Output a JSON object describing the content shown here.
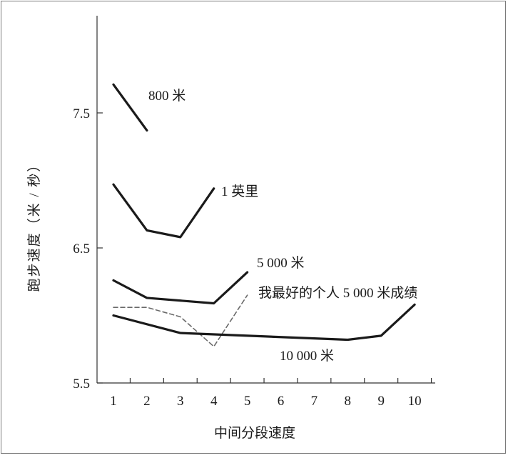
{
  "chart_data": {
    "type": "line",
    "title": "",
    "xlabel": "中间分段速度",
    "ylabel": "跑步速度（米 / 秒）",
    "xlim": [
      0.9,
      10.5
    ],
    "ylim": [
      5.5,
      8.3
    ],
    "x_ticks": [
      "1",
      "2",
      "3",
      "4",
      "5",
      "6",
      "7",
      "8",
      "9",
      "10"
    ],
    "y_ticks": [
      "5.5",
      "6.5",
      "7.5"
    ],
    "grid": false,
    "series": [
      {
        "name": "800 米",
        "color": "#1a1a1a",
        "dash": false,
        "x": [
          1,
          2
        ],
        "values": [
          7.71,
          7.37
        ]
      },
      {
        "name": "1 英里",
        "color": "#1a1a1a",
        "dash": false,
        "x": [
          1,
          2,
          3,
          4
        ],
        "values": [
          6.97,
          6.63,
          6.58,
          6.94
        ]
      },
      {
        "name": "5 000 米",
        "color": "#1a1a1a",
        "dash": false,
        "x": [
          1,
          2,
          4,
          5
        ],
        "values": [
          6.26,
          6.13,
          6.09,
          6.32
        ]
      },
      {
        "name": "我最好的个人 5 000 米成绩",
        "color": "#6a6a6a",
        "dash": true,
        "x": [
          1,
          2,
          3,
          4,
          5
        ],
        "values": [
          6.06,
          6.06,
          5.99,
          5.77,
          6.15
        ]
      },
      {
        "name": "10 000 米",
        "color": "#1a1a1a",
        "dash": false,
        "x": [
          1,
          3,
          8,
          9,
          10
        ],
        "values": [
          6.0,
          5.87,
          5.82,
          5.85,
          6.08
        ]
      }
    ]
  }
}
